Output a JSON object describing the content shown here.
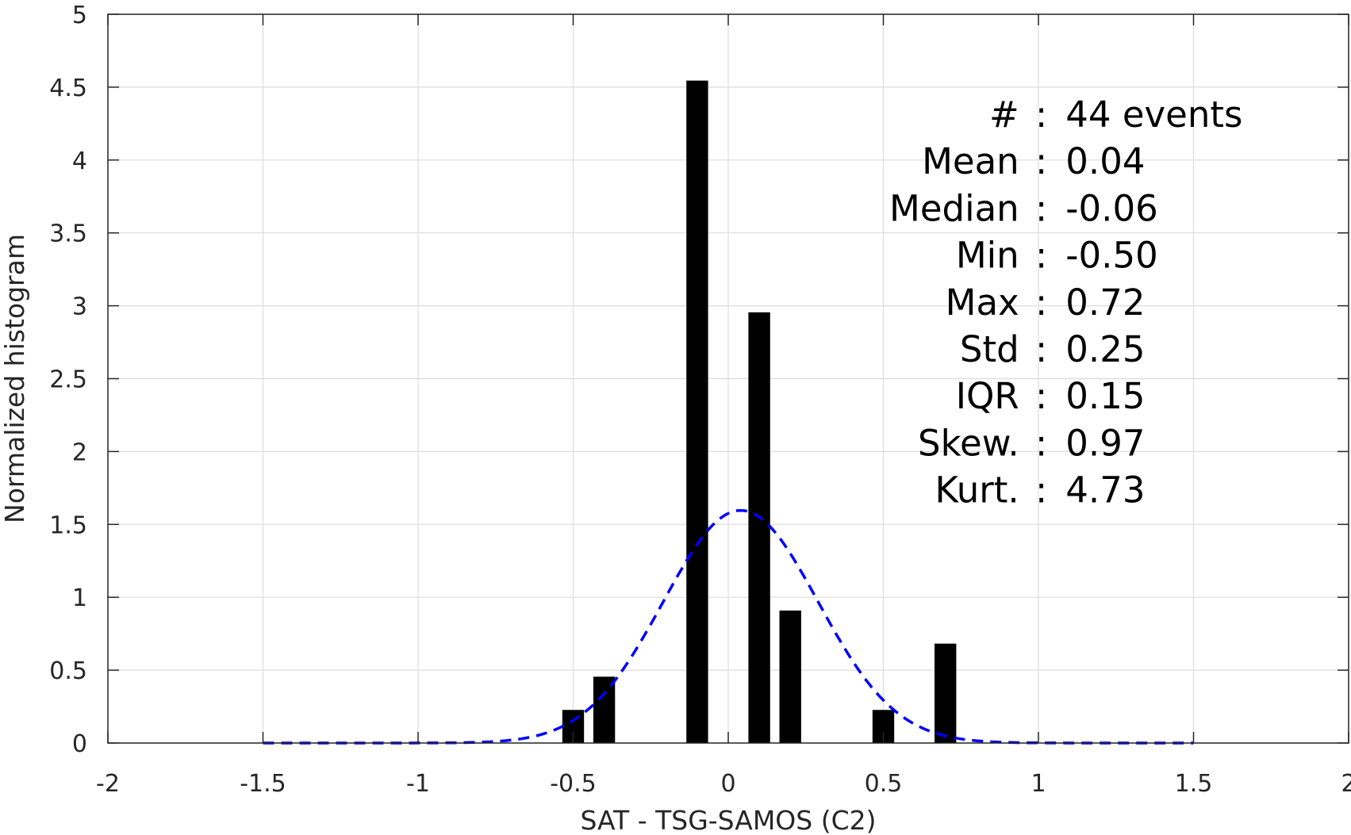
{
  "chart_data": {
    "type": "bar",
    "title": "",
    "xlabel": "SAT - TSG-SAMOS (C2)",
    "ylabel": "Normalized histogram",
    "xlim": [
      -2,
      2
    ],
    "ylim": [
      0,
      5
    ],
    "grid": true,
    "xticks": [
      -2,
      -1.5,
      -1,
      -0.5,
      0,
      0.5,
      1,
      1.5,
      2
    ],
    "yticks": [
      0,
      0.5,
      1,
      1.5,
      2,
      2.5,
      3,
      3.5,
      4,
      4.5,
      5
    ],
    "xtick_labels": [
      "-2",
      "-1.5",
      "-1",
      "-0.5",
      "0",
      "0.5",
      "1",
      "1.5",
      "2"
    ],
    "ytick_labels": [
      "0",
      "0.5",
      "1",
      "1.5",
      "2",
      "2.5",
      "3",
      "3.5",
      "4",
      "4.5",
      "5"
    ],
    "bin_width": 0.1,
    "bars": [
      {
        "x": -0.5,
        "y": 0.227
      },
      {
        "x": -0.4,
        "y": 0.455
      },
      {
        "x": -0.1,
        "y": 4.545
      },
      {
        "x": 0.1,
        "y": 2.955
      },
      {
        "x": 0.2,
        "y": 0.909
      },
      {
        "x": 0.5,
        "y": 0.227
      },
      {
        "x": 0.7,
        "y": 0.682
      }
    ],
    "bar_color": "#000000",
    "fit_curve": {
      "style": "dashed",
      "color": "#0000ff",
      "distribution": "normal",
      "mean": 0.04,
      "std": 0.25,
      "x_range": [
        -1.5,
        1.5
      ]
    },
    "annotations": [
      {
        "label": "#  ",
        "value": "44 events"
      },
      {
        "label": "Mean ",
        "value": "0.04"
      },
      {
        "label": "Median ",
        "value": "-0.06"
      },
      {
        "label": "Min ",
        "value": "-0.50"
      },
      {
        "label": "Max ",
        "value": "0.72"
      },
      {
        "label": "Std ",
        "value": "0.25"
      },
      {
        "label": "IQR ",
        "value": "0.15"
      },
      {
        "label": "Skew. ",
        "value": "0.97"
      },
      {
        "label": "Kurt. ",
        "value": "4.73"
      }
    ]
  }
}
